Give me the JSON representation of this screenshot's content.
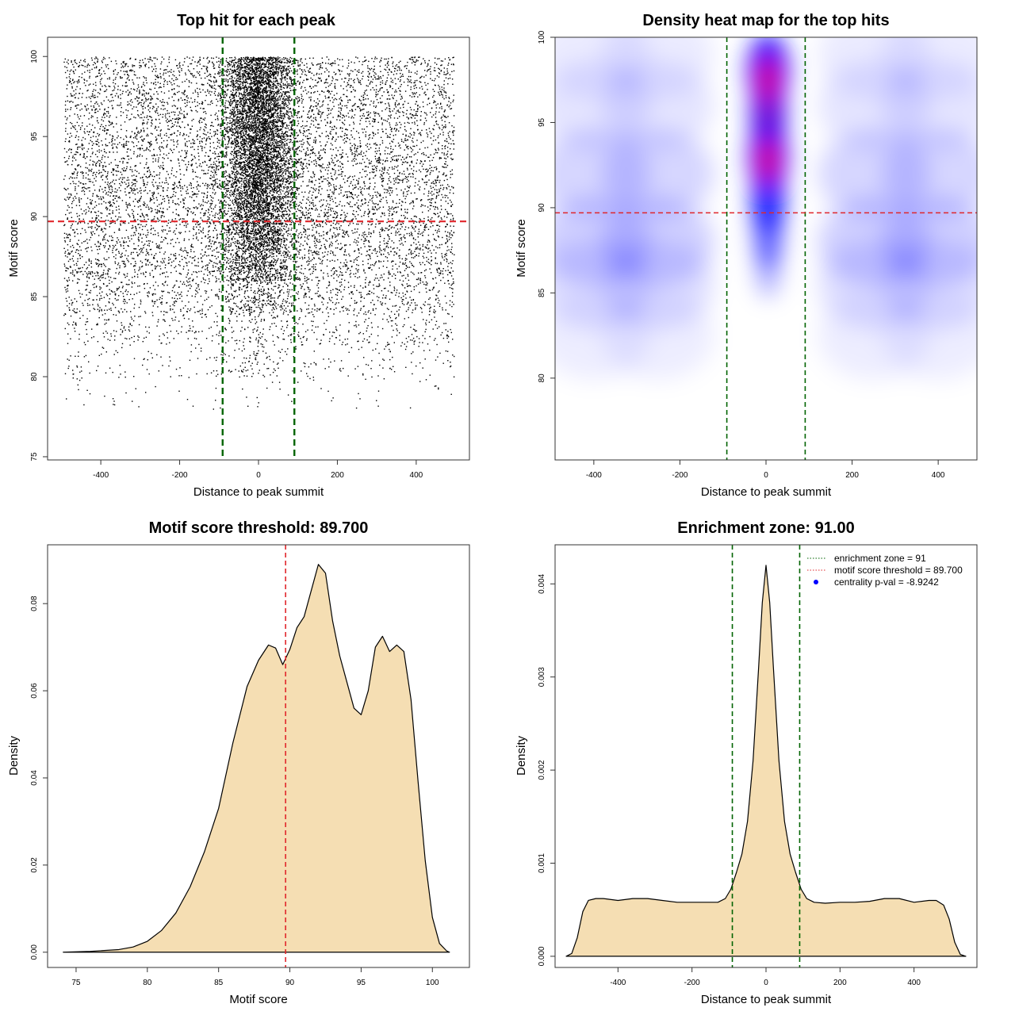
{
  "chart_data": [
    {
      "id": "scatter",
      "type": "scatter",
      "title": "Top hit for each peak",
      "xlabel": "Distance to peak summit",
      "ylabel": "Motif score",
      "xlim": [
        -535,
        535
      ],
      "ylim": [
        74.8,
        101.2
      ],
      "xticks": [
        -400,
        -200,
        0,
        200,
        400
      ],
      "yticks": [
        75,
        80,
        85,
        90,
        95,
        100
      ],
      "x_range_of_points": [
        -495,
        495
      ],
      "threshold_y": 89.7,
      "zone_x": [
        -91,
        91
      ],
      "colors": {
        "points": "#000000",
        "threshold": "#e0262b",
        "zone": "#006400"
      },
      "point_distribution": {
        "background_score_density": [
          [
            78,
            0.1
          ],
          [
            80,
            0.4
          ],
          [
            82,
            1.2
          ],
          [
            84,
            2.5
          ],
          [
            86,
            4.0
          ],
          [
            88,
            4.8
          ],
          [
            90,
            4.9
          ],
          [
            92,
            5.0
          ],
          [
            94,
            4.6
          ],
          [
            96,
            4.5
          ],
          [
            98,
            4.6
          ],
          [
            100,
            4.6
          ]
        ],
        "central_score_density": [
          [
            80,
            0.1
          ],
          [
            84,
            0.5
          ],
          [
            86,
            1.6
          ],
          [
            88,
            3.8
          ],
          [
            90,
            5.0
          ],
          [
            92,
            6.0
          ],
          [
            94,
            6.4
          ],
          [
            96,
            6.6
          ],
          [
            98,
            6.2
          ],
          [
            100,
            5.0
          ]
        ],
        "central_position_sd": 45
      }
    },
    {
      "id": "heatmap",
      "type": "heatmap",
      "title": "Density heat map for the top hits",
      "xlabel": "Distance to peak summit",
      "ylabel": "Motif score",
      "xlim": [
        -490,
        490
      ],
      "ylim": [
        75.2,
        100
      ],
      "xticks": [
        -400,
        -200,
        0,
        200,
        400
      ],
      "yticks": [
        80,
        85,
        90,
        95,
        100
      ],
      "threshold_y": 89.7,
      "zone_x": [
        -91,
        91
      ],
      "colors": {
        "low": "#ffffff",
        "mid": "#0000ff",
        "high": "#ff0000",
        "threshold": "#e0262b",
        "zone": "#006400"
      },
      "hotspots": [
        {
          "x": 5,
          "y": 97.5,
          "level": "high"
        },
        {
          "x": 5,
          "y": 92.8,
          "level": "high"
        }
      ]
    },
    {
      "id": "score-density",
      "type": "area",
      "title": "Motif score threshold: 89.700",
      "xlabel": "Motif score",
      "ylabel": "Density",
      "xlim": [
        73.0,
        102.6
      ],
      "ylim": [
        -0.0035,
        0.0935
      ],
      "xticks": [
        75,
        80,
        85,
        90,
        95,
        100
      ],
      "yticks": [
        0.0,
        0.02,
        0.04,
        0.06,
        0.08
      ],
      "ytick_labels": [
        "0.00",
        "0.02",
        "0.04",
        "0.06",
        "0.08"
      ],
      "threshold_x": 89.7,
      "colors": {
        "fill": "#f5deb3",
        "line": "#000000",
        "threshold": "#e0262b"
      },
      "x": [
        74.1,
        76.0,
        78.0,
        79.0,
        80.0,
        81.0,
        82.0,
        83.0,
        84.0,
        85.0,
        86.0,
        87.0,
        87.8,
        88.5,
        89.0,
        89.5,
        90.0,
        90.5,
        91.0,
        91.5,
        92.0,
        92.5,
        93.0,
        93.5,
        94.0,
        94.5,
        95.0,
        95.5,
        96.0,
        96.5,
        97.0,
        97.5,
        98.0,
        98.5,
        99.0,
        99.5,
        100.0,
        100.5,
        101.0,
        101.2
      ],
      "y": [
        0.0,
        0.0002,
        0.0006,
        0.0012,
        0.0025,
        0.005,
        0.009,
        0.015,
        0.023,
        0.033,
        0.048,
        0.061,
        0.067,
        0.0705,
        0.0698,
        0.066,
        0.0695,
        0.0745,
        0.077,
        0.083,
        0.089,
        0.087,
        0.076,
        0.068,
        0.062,
        0.056,
        0.0545,
        0.06,
        0.07,
        0.0725,
        0.069,
        0.0705,
        0.069,
        0.058,
        0.039,
        0.021,
        0.008,
        0.002,
        0.0003,
        0.0
      ]
    },
    {
      "id": "position-density",
      "type": "area",
      "title": "Enrichment zone: 91.00",
      "xlabel": "Distance to peak summit",
      "ylabel": "Density",
      "xlim": [
        -570,
        570
      ],
      "ylim": [
        -0.00012,
        0.00442
      ],
      "xticks": [
        -400,
        -200,
        0,
        200,
        400
      ],
      "yticks": [
        0.0,
        0.001,
        0.002,
        0.003,
        0.004
      ],
      "ytick_labels": [
        "0.000",
        "0.001",
        "0.002",
        "0.003",
        "0.004"
      ],
      "zone_x": [
        -91,
        91
      ],
      "colors": {
        "fill": "#f5deb3",
        "line": "#000000",
        "zone": "#006400"
      },
      "x": [
        -540,
        -525,
        -510,
        -495,
        -480,
        -460,
        -440,
        -400,
        -360,
        -320,
        -280,
        -240,
        -200,
        -160,
        -130,
        -110,
        -95,
        -80,
        -65,
        -50,
        -35,
        -20,
        -10,
        0,
        10,
        20,
        35,
        50,
        65,
        80,
        95,
        110,
        130,
        160,
        200,
        240,
        280,
        320,
        360,
        400,
        440,
        460,
        480,
        495,
        510,
        525,
        540
      ],
      "y": [
        0.0,
        3e-05,
        0.0002,
        0.00048,
        0.0006,
        0.00062,
        0.00062,
        0.0006,
        0.00062,
        0.00062,
        0.0006,
        0.00058,
        0.00058,
        0.00058,
        0.00058,
        0.00062,
        0.00072,
        0.0009,
        0.0011,
        0.00145,
        0.0021,
        0.0031,
        0.0038,
        0.0042,
        0.0038,
        0.0031,
        0.0021,
        0.00145,
        0.0011,
        0.0009,
        0.00072,
        0.00062,
        0.00058,
        0.00057,
        0.00058,
        0.00058,
        0.00059,
        0.00062,
        0.00062,
        0.00058,
        0.0006,
        0.0006,
        0.00055,
        0.0004,
        0.00015,
        2e-05,
        0.0
      ],
      "legend": [
        {
          "label": "enrichment zone = 91",
          "style": "dotted-line",
          "color": "#006400"
        },
        {
          "label": "motif score threshold = 89.700",
          "style": "dotted-line",
          "color": "#e0262b"
        },
        {
          "label": "centrality p-val = -8.9242",
          "style": "point",
          "color": "#0000ff"
        }
      ],
      "legend_position": "top-right"
    }
  ]
}
